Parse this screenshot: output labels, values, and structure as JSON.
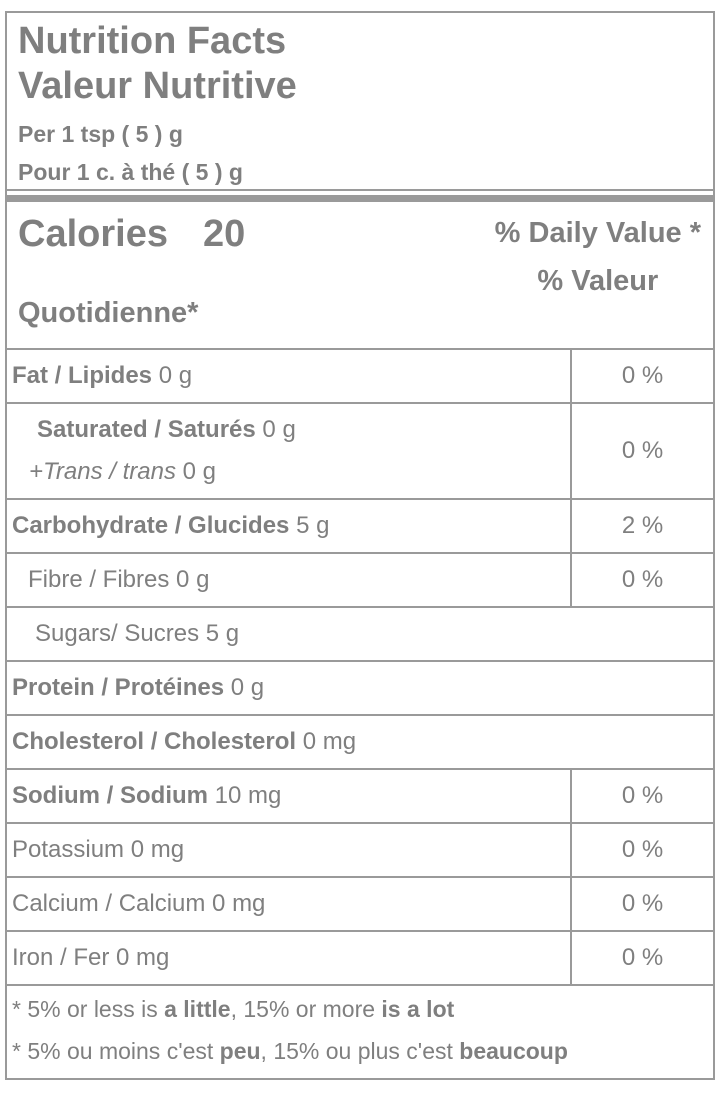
{
  "header": {
    "title_en": "Nutrition Facts",
    "title_fr": "Valeur Nutritive",
    "serving_en": "Per 1 tsp ( 5 ) g",
    "serving_fr": "Pour 1 c. à thé ( 5 ) g"
  },
  "calories": {
    "label": "Calories",
    "value": "20"
  },
  "daily_value": {
    "en": "% Daily Value *",
    "fr_line1": "% Valeur",
    "fr_line2": "Quotidienne*"
  },
  "rows": [
    {
      "name": "Fat / Lipides",
      "amount": "0 g",
      "dv": "0 %"
    },
    {
      "name": "Saturated / Saturés",
      "amount": "0 g",
      "name2": "+Trans / trans",
      "amount2": "0 g",
      "dv": "0 %"
    },
    {
      "name": "Carbohydrate / Glucides",
      "amount": "5 g",
      "dv": "2 %"
    },
    {
      "name": "Fibre / Fibres",
      "amount": "0 g",
      "dv": "0 %"
    },
    {
      "name": "Sugars/ Sucres",
      "amount": "5 g"
    },
    {
      "name": "Protein / Protéines",
      "amount": "0 g"
    },
    {
      "name": "Cholesterol / Cholesterol",
      "amount": "0 mg"
    },
    {
      "name": "Sodium / Sodium",
      "amount": "10 mg",
      "dv": "0 %"
    },
    {
      "name": "Potassium",
      "amount": "0 mg",
      "dv": "0 %"
    },
    {
      "name": "Calcium / Calcium",
      "amount": "0 mg",
      "dv": "0 %"
    },
    {
      "name": "Iron / Fer",
      "amount": "0 mg",
      "dv": "0 %"
    }
  ],
  "footnotes": {
    "en": {
      "t1": "* 5% or less is ",
      "b1": "a little",
      "t2": ", 15% or more ",
      "b2": "is a lot"
    },
    "fr": {
      "t1": "* 5% ou moins c'est ",
      "b1": "peu",
      "t2": ", 15% ou plus c'est ",
      "b2": "beaucoup"
    }
  },
  "colors": {
    "text": "#7f7f7f",
    "border": "#9a9a9a",
    "background": "#ffffff"
  }
}
